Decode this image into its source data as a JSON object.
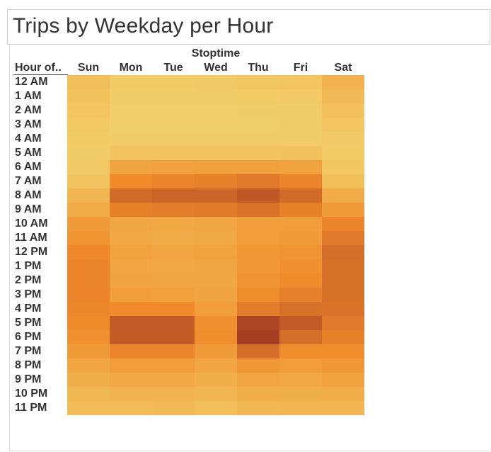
{
  "title": "Trips by Weekday per Hour",
  "column_header": "Stoptime",
  "row_header": "Hour of..",
  "colors": {
    "low": "#f2d16b",
    "mid": "#f08a2a",
    "high": "#9e3523"
  },
  "chart_data": {
    "type": "heatmap",
    "columns": [
      "Sun",
      "Mon",
      "Tue",
      "Wed",
      "Thu",
      "Fri",
      "Sat"
    ],
    "rows": [
      "12 AM",
      "1 AM",
      "2 AM",
      "3 AM",
      "4 AM",
      "5 AM",
      "6 AM",
      "7 AM",
      "8 AM",
      "9 AM",
      "10 AM",
      "11 AM",
      "12 PM",
      "1 PM",
      "2 PM",
      "3 PM",
      "4 PM",
      "5 PM",
      "6 PM",
      "7 PM",
      "8 PM",
      "9 PM",
      "10 PM",
      "11 PM"
    ],
    "values": [
      [
        0.14,
        0.05,
        0.05,
        0.06,
        0.08,
        0.09,
        0.24
      ],
      [
        0.12,
        0.03,
        0.03,
        0.04,
        0.05,
        0.06,
        0.18
      ],
      [
        0.09,
        0.02,
        0.02,
        0.02,
        0.03,
        0.04,
        0.13
      ],
      [
        0.07,
        0.02,
        0.02,
        0.02,
        0.02,
        0.03,
        0.09
      ],
      [
        0.05,
        0.03,
        0.03,
        0.03,
        0.03,
        0.04,
        0.06
      ],
      [
        0.04,
        0.1,
        0.1,
        0.1,
        0.11,
        0.12,
        0.05
      ],
      [
        0.06,
        0.35,
        0.37,
        0.38,
        0.38,
        0.36,
        0.08
      ],
      [
        0.1,
        0.55,
        0.58,
        0.6,
        0.64,
        0.58,
        0.14
      ],
      [
        0.22,
        0.72,
        0.75,
        0.75,
        0.82,
        0.72,
        0.3
      ],
      [
        0.3,
        0.6,
        0.62,
        0.63,
        0.67,
        0.6,
        0.42
      ],
      [
        0.42,
        0.33,
        0.32,
        0.33,
        0.4,
        0.4,
        0.58
      ],
      [
        0.48,
        0.32,
        0.3,
        0.31,
        0.4,
        0.42,
        0.64
      ],
      [
        0.56,
        0.36,
        0.34,
        0.36,
        0.45,
        0.48,
        0.7
      ],
      [
        0.58,
        0.34,
        0.32,
        0.33,
        0.44,
        0.5,
        0.68
      ],
      [
        0.58,
        0.35,
        0.33,
        0.33,
        0.47,
        0.54,
        0.68
      ],
      [
        0.58,
        0.4,
        0.38,
        0.35,
        0.52,
        0.6,
        0.68
      ],
      [
        0.57,
        0.55,
        0.55,
        0.4,
        0.62,
        0.68,
        0.67
      ],
      [
        0.54,
        0.8,
        0.8,
        0.5,
        0.92,
        0.8,
        0.64
      ],
      [
        0.5,
        0.8,
        0.8,
        0.52,
        0.95,
        0.7,
        0.6
      ],
      [
        0.42,
        0.58,
        0.58,
        0.42,
        0.7,
        0.52,
        0.52
      ],
      [
        0.34,
        0.4,
        0.4,
        0.34,
        0.44,
        0.4,
        0.44
      ],
      [
        0.26,
        0.32,
        0.32,
        0.27,
        0.34,
        0.32,
        0.36
      ],
      [
        0.2,
        0.24,
        0.24,
        0.21,
        0.26,
        0.26,
        0.28
      ],
      [
        0.16,
        0.17,
        0.18,
        0.15,
        0.2,
        0.22,
        0.22
      ]
    ]
  }
}
